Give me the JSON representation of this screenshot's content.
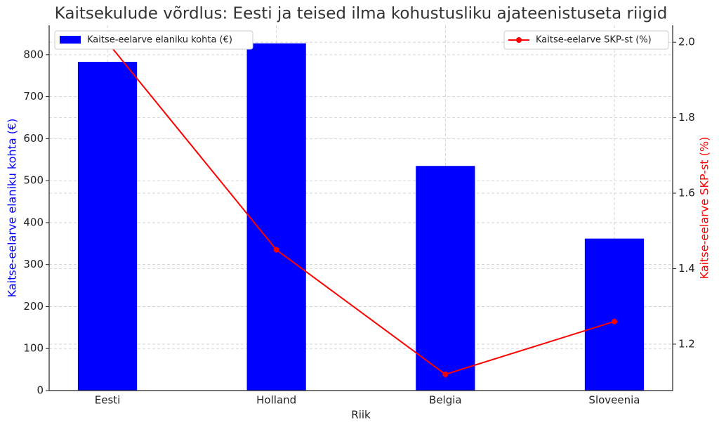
{
  "chart_data": {
    "type": "bar-line",
    "title": "Kaitsekulude võrdlus: Eesti ja teised ilma kohustusliku ajateenistuseta riigid",
    "x_label": "Riik",
    "y_label": "Kaitse-eelarve elaniku kohta (€)",
    "y2_label": "Kaitse-eelarve SKP-st (%)",
    "categories": [
      "Eesti",
      "Holland",
      "Belgia",
      "Sloveenia"
    ],
    "series": [
      {
        "name": "Kaitse-eelarve elaniku kohta (€)",
        "type": "bar",
        "color": "#0000ff",
        "values": [
          783,
          827,
          535,
          362
        ]
      },
      {
        "name": "Kaitse-eelarve SKP-st (%)",
        "type": "line",
        "axis": "y2",
        "color": "#ff0000",
        "values": [
          2.0,
          1.45,
          1.12,
          1.26
        ]
      }
    ],
    "ylim": [
      0,
      870
    ],
    "yticks": [
      0,
      100,
      200,
      300,
      400,
      500,
      600,
      700,
      800
    ],
    "y2lim": [
      1.077,
      2.045
    ],
    "y2ticks": [
      1.2,
      1.4,
      1.6,
      1.8,
      {
        "value": 2.0,
        "label": "2.0"
      }
    ],
    "grid": true
  }
}
